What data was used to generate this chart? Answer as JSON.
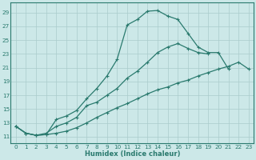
{
  "xlabel": "Humidex (Indice chaleur)",
  "xlim": [
    -0.5,
    23.5
  ],
  "ylim": [
    10.0,
    30.5
  ],
  "yticks": [
    11,
    13,
    15,
    17,
    19,
    21,
    23,
    25,
    27,
    29
  ],
  "xticks": [
    0,
    1,
    2,
    3,
    4,
    5,
    6,
    7,
    8,
    9,
    10,
    11,
    12,
    13,
    14,
    15,
    16,
    17,
    18,
    19,
    20,
    21,
    22,
    23
  ],
  "line_color": "#2a7a6e",
  "bg_color": "#cce8e8",
  "grid_color": "#aacccc",
  "line1_y": [
    12.5,
    11.5,
    11.2,
    11.3,
    13.5,
    14.0,
    14.8,
    16.5,
    18.0,
    19.8,
    22.2,
    27.2,
    28.0,
    29.2,
    29.3,
    28.5,
    28.0,
    26.0,
    24.0,
    23.2,
    23.2,
    20.8,
    null,
    null
  ],
  "line2_y": [
    12.5,
    11.5,
    11.2,
    11.5,
    12.5,
    13.0,
    13.8,
    15.5,
    16.0,
    17.0,
    18.0,
    19.5,
    20.5,
    21.8,
    23.2,
    24.0,
    24.5,
    23.8,
    23.2,
    23.0,
    null,
    null,
    null,
    null
  ],
  "line3_y": [
    12.5,
    11.5,
    11.2,
    11.3,
    11.5,
    11.8,
    12.3,
    13.0,
    13.8,
    14.5,
    15.2,
    15.8,
    16.5,
    17.2,
    17.8,
    18.2,
    18.8,
    19.2,
    19.8,
    20.3,
    20.8,
    21.2,
    21.8,
    20.8
  ]
}
